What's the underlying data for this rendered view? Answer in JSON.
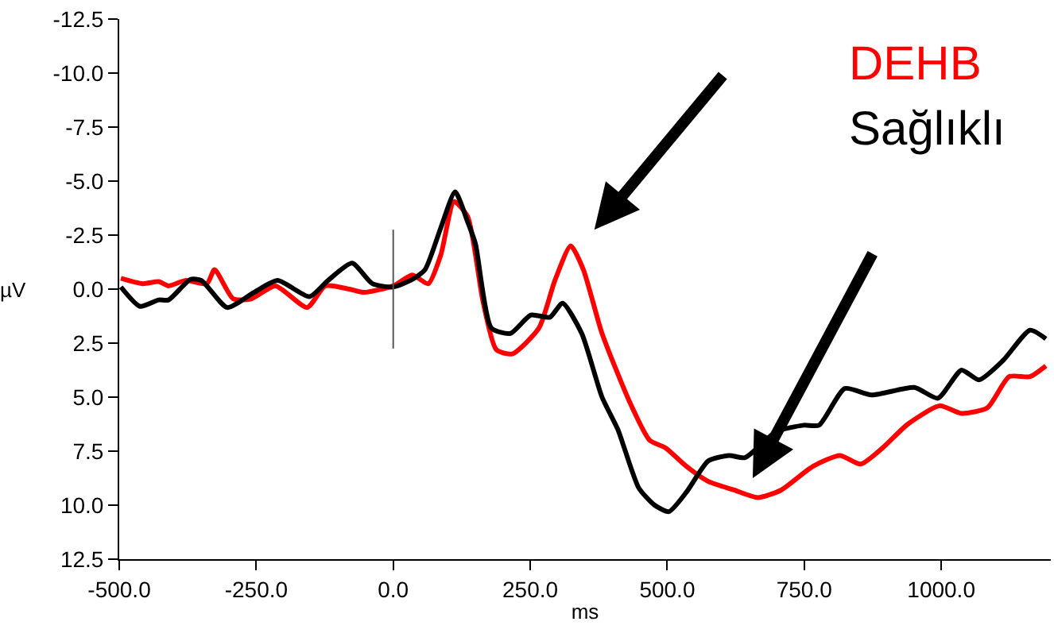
{
  "chart_data": {
    "type": "line",
    "xlabel": "ms",
    "ylabel": "µV",
    "legend": "top right",
    "marker": "none",
    "line_style": "solid",
    "xlim": [
      -500,
      1200
    ],
    "ylim": [
      12.5,
      -12.5
    ],
    "xticks": [
      {
        "value": -500,
        "label": "-500.0"
      },
      {
        "value": -250,
        "label": "-250.0"
      },
      {
        "value": 0,
        "label": "0.0"
      },
      {
        "value": 250,
        "label": "250.0"
      },
      {
        "value": 500,
        "label": "500.0"
      },
      {
        "value": 750,
        "label": "750.0"
      },
      {
        "value": 1000,
        "label": "1000.0"
      }
    ],
    "yticks": [
      {
        "value": -12.5,
        "label": "-12.5"
      },
      {
        "value": -10,
        "label": "-10.0"
      },
      {
        "value": -7.5,
        "label": "-7.5"
      },
      {
        "value": -5,
        "label": "-5.0"
      },
      {
        "value": -2.5,
        "label": "-2.5"
      },
      {
        "value": 0,
        "label": "0.0"
      },
      {
        "value": 2.5,
        "label": "2.5"
      },
      {
        "value": 5,
        "label": "5.0"
      },
      {
        "value": 7.5,
        "label": "7.5"
      },
      {
        "value": 10,
        "label": "10.0"
      },
      {
        "value": 12.5,
        "label": "12.5"
      }
    ],
    "ref_lines": [
      {
        "axis": "x",
        "value": 0,
        "color": "#555555"
      }
    ],
    "series": [
      {
        "name": "DEHB",
        "color": "#ff0000",
        "x": [
          -497,
          -457,
          -428,
          -410,
          -379,
          -340,
          -326,
          -292,
          -259,
          -215,
          -157,
          -124,
          -80,
          -53,
          0,
          35,
          64,
          87,
          111,
          136,
          164,
          188,
          217,
          266,
          295,
          324,
          347,
          381,
          431,
          468,
          497,
          535,
          575,
          622,
          665,
          708,
          766,
          815,
          853,
          893,
          939,
          997,
          1037,
          1084,
          1124,
          1162,
          1191
        ],
        "values": [
          -0.5,
          -0.25,
          -0.35,
          -0.15,
          -0.4,
          -0.25,
          -0.9,
          0.45,
          0.45,
          -0.15,
          0.85,
          -0.15,
          0,
          0.15,
          -0.15,
          -0.65,
          -0.25,
          -1.6,
          -4.05,
          -3.35,
          0.6,
          2.8,
          3.0,
          1.8,
          -0.4,
          -2.0,
          -0.9,
          2.05,
          5.2,
          7.0,
          7.35,
          8.2,
          8.9,
          9.3,
          9.65,
          9.3,
          8.2,
          7.7,
          8.1,
          7.35,
          6.25,
          5.4,
          5.75,
          5.5,
          4.05,
          4.05,
          3.55
        ]
      },
      {
        "name": "Sağlıklı",
        "color": "#000000",
        "x": [
          -497,
          -462,
          -428,
          -410,
          -370,
          -350,
          -303,
          -254,
          -211,
          -153,
          -119,
          -75,
          -38,
          0,
          35,
          58,
          87,
          113,
          136,
          150,
          179,
          214,
          251,
          286,
          309,
          344,
          381,
          410,
          448,
          477,
          503,
          535,
          575,
          613,
          642,
          699,
          749,
          777,
          824,
          873,
          951,
          994,
          1037,
          1069,
          1113,
          1162,
          1191
        ],
        "values": [
          -0.1,
          0.8,
          0.5,
          0.5,
          -0.45,
          -0.4,
          0.85,
          0.15,
          -0.4,
          0.35,
          -0.4,
          -1.2,
          -0.25,
          -0.1,
          -0.45,
          -0.9,
          -2.85,
          -4.5,
          -3.1,
          -2.1,
          1.8,
          2.05,
          1.2,
          1.3,
          0.65,
          2.05,
          5.0,
          6.5,
          9.2,
          10.0,
          10.3,
          9.4,
          7.95,
          7.7,
          7.8,
          6.6,
          6.3,
          6.3,
          4.6,
          4.9,
          4.55,
          5.05,
          3.75,
          4.2,
          3.3,
          1.9,
          2.3
        ]
      }
    ]
  }
}
